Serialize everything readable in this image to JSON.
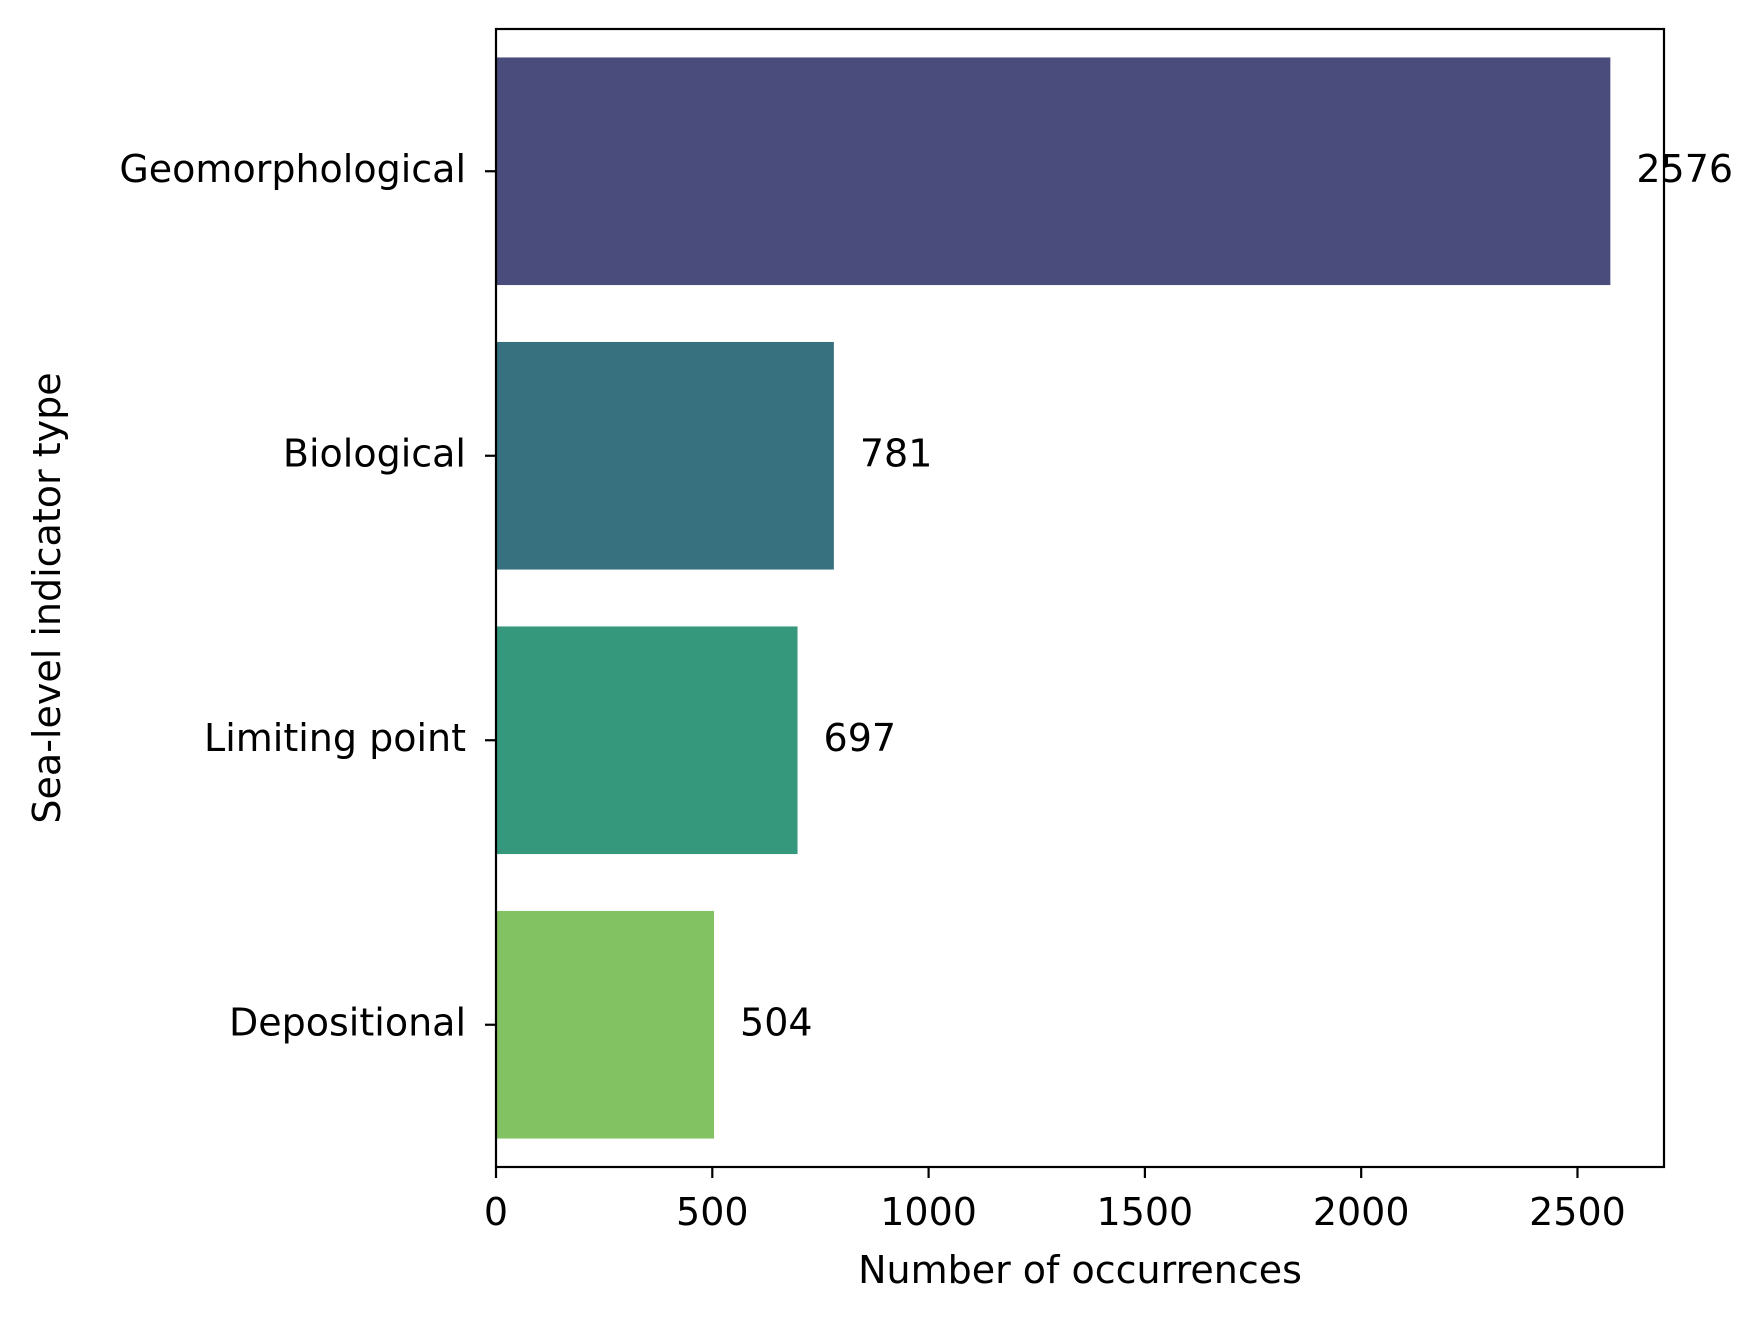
{
  "chart_data": {
    "type": "bar",
    "orientation": "horizontal",
    "title": "",
    "xlabel": "Number of occurrences",
    "ylabel": "Sea-level indicator type",
    "categories": [
      "Geomorphological",
      "Biological",
      "Limiting point",
      "Depositional"
    ],
    "values": [
      2576,
      781,
      697,
      504
    ],
    "data_labels": [
      "2576",
      "781",
      "697",
      "504"
    ],
    "colors": [
      "#4a4d7c",
      "#37717f",
      "#35977b",
      "#82c263"
    ],
    "xlim": [
      0,
      2700
    ],
    "xticks": [
      0,
      500,
      1000,
      1500,
      2000,
      2500
    ],
    "xtick_labels": [
      "0",
      "500",
      "1000",
      "1500",
      "2000",
      "2500"
    ],
    "grid": false,
    "legend": false
  }
}
